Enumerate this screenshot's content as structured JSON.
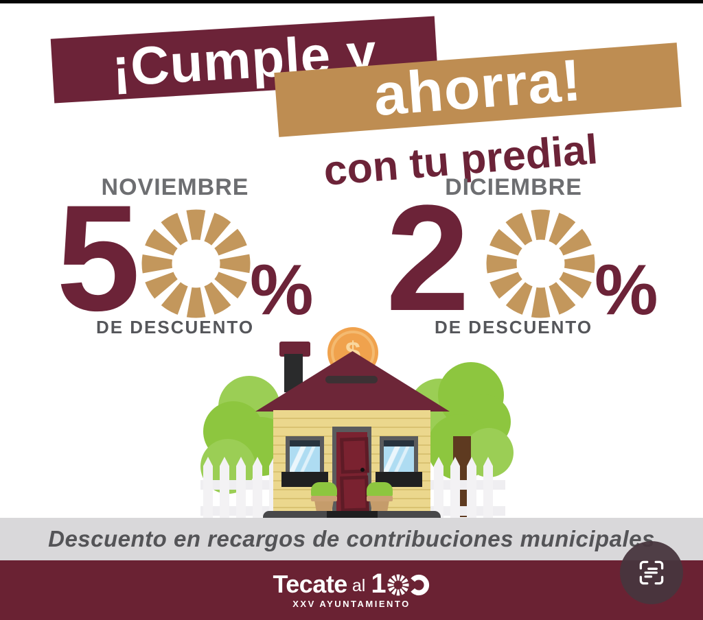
{
  "banner_primary": {
    "text": "¡Cumple y"
  },
  "banner_secondary": {
    "text": "ahorra!"
  },
  "subtitle": {
    "text": "con tu predial"
  },
  "discounts": [
    {
      "month": "NOVIEMBRE",
      "digit": "5",
      "percent_sign": "%",
      "caption": "DE DESCUENTO",
      "percent": 50
    },
    {
      "month": "DICIEMBRE",
      "digit": "2",
      "percent_sign": "%",
      "caption": "DE DESCUENTO",
      "percent": 20
    }
  ],
  "strip": {
    "text": "Descuento en recargos de contribuciones municipales"
  },
  "footer": {
    "brand": "Tecate",
    "brand_suffix": "al",
    "brand_number": "1",
    "subtext": "XXV AYUNTAMIENTO"
  },
  "illustration": {
    "coin_symbol": "$"
  },
  "colors": {
    "maroon": "#6C2338",
    "tan": "#BE8D52",
    "ring_tan": "#C3975C",
    "month_gray": "#6D6E71",
    "caption_gray": "#55565A",
    "strip_bg": "#D9D8DA",
    "strip_text": "#545457",
    "footer_bg": "#6A2233",
    "fab_bg": "#48363E"
  }
}
